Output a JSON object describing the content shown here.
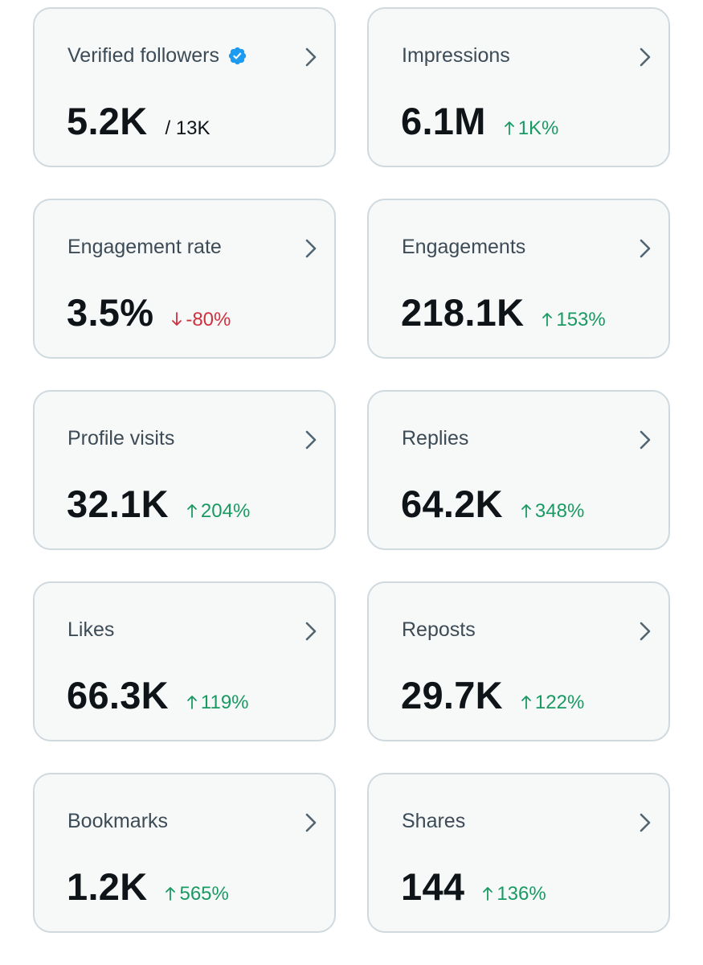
{
  "colors": {
    "card_background": "#f7f9f9",
    "card_border": "#cfd9de",
    "label_text": "#3d4b56",
    "value_text": "#0f1419",
    "positive": "#1a9a63",
    "negative": "#d1303d",
    "verified_badge": "#1d9bf0",
    "chevron": "#536471"
  },
  "cards": [
    {
      "label": "Verified followers",
      "value": "5.2K",
      "sub": "/ 13K",
      "verified_icon": "verified-badge-icon"
    },
    {
      "label": "Impressions",
      "value": "6.1M",
      "change": "1K%",
      "direction": "up"
    },
    {
      "label": "Engagement rate",
      "value": "3.5%",
      "change": "-80%",
      "direction": "down"
    },
    {
      "label": "Engagements",
      "value": "218.1K",
      "change": "153%",
      "direction": "up"
    },
    {
      "label": "Profile visits",
      "value": "32.1K",
      "change": "204%",
      "direction": "up"
    },
    {
      "label": "Replies",
      "value": "64.2K",
      "change": "348%",
      "direction": "up"
    },
    {
      "label": "Likes",
      "value": "66.3K",
      "change": "119%",
      "direction": "up"
    },
    {
      "label": "Reposts",
      "value": "29.7K",
      "change": "122%",
      "direction": "up"
    },
    {
      "label": "Bookmarks",
      "value": "1.2K",
      "change": "565%",
      "direction": "up"
    },
    {
      "label": "Shares",
      "value": "144",
      "change": "136%",
      "direction": "up"
    }
  ]
}
